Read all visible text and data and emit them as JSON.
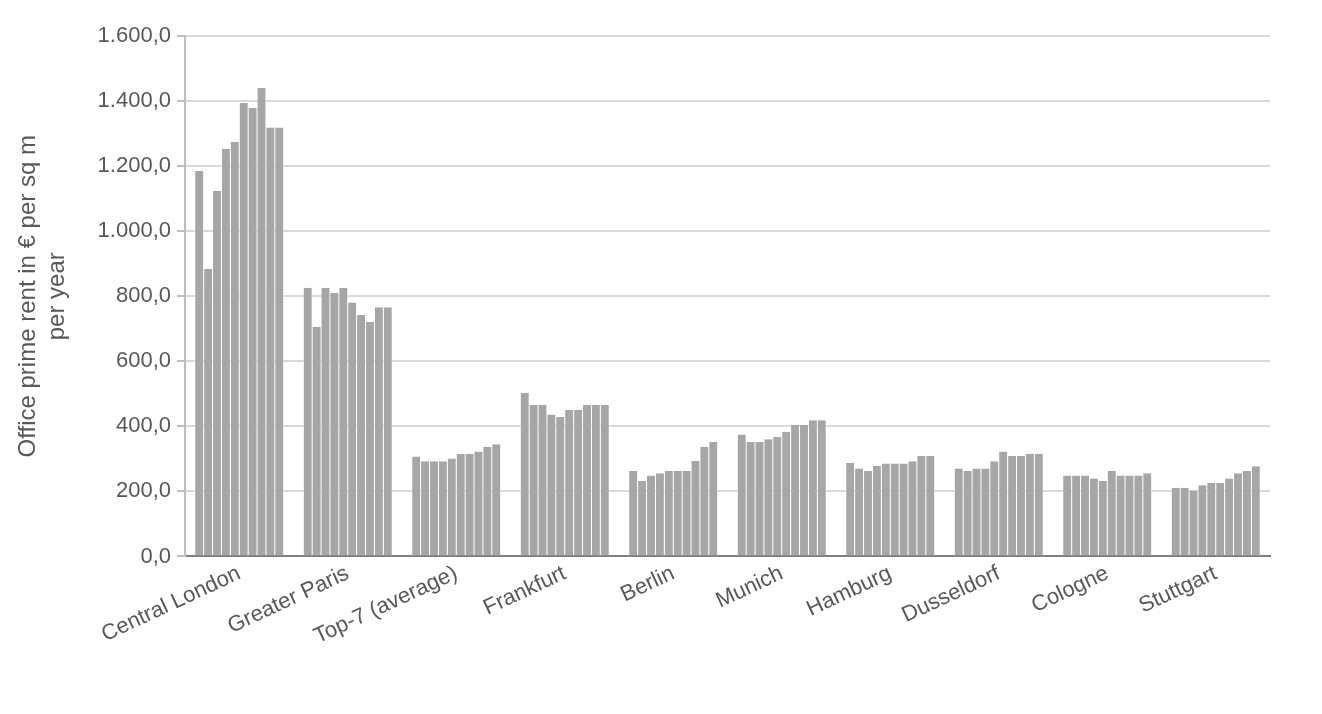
{
  "chart_data": {
    "type": "bar",
    "ylabel": "Office prime rent in € per sq m per year",
    "categories": [
      "Central London",
      "Greater Paris",
      "Top-7 (average)",
      "Frankfurt",
      "Berlin",
      "Munich",
      "Hamburg",
      "Dusseldorf",
      "Cologne",
      "Stuttgart"
    ],
    "series": [
      {
        "color": "#a6a6a6",
        "values": [
          1185,
          826,
          307,
          503,
          263,
          375,
          287,
          270,
          249,
          211
        ]
      },
      {
        "color": "#a6a6a6",
        "values": [
          884,
          706,
          293,
          466,
          233,
          352,
          270,
          263,
          249,
          211
        ]
      },
      {
        "color": "#a6a6a6",
        "values": [
          1124,
          826,
          293,
          466,
          249,
          352,
          263,
          270,
          249,
          203
        ]
      },
      {
        "color": "#a6a6a6",
        "values": [
          1253,
          811,
          293,
          436,
          256,
          360,
          279,
          270,
          240,
          219
        ]
      },
      {
        "color": "#a6a6a6",
        "values": [
          1275,
          826,
          301,
          429,
          263,
          368,
          286,
          293,
          233,
          226
        ]
      },
      {
        "color": "#a6a6a6",
        "values": [
          1394,
          781,
          316,
          450,
          263,
          383,
          286,
          323,
          263,
          226
        ]
      },
      {
        "color": "#a6a6a6",
        "values": [
          1379,
          742,
          316,
          450,
          263,
          405,
          286,
          309,
          249,
          240
        ]
      },
      {
        "color": "#a6a6a6",
        "values": [
          1440,
          721,
          323,
          466,
          294,
          405,
          293,
          309,
          249,
          256
        ]
      },
      {
        "color": "#a6a6a6",
        "values": [
          1319,
          766,
          337,
          466,
          337,
          419,
          309,
          316,
          249,
          263
        ]
      },
      {
        "color": "#a6a6a6",
        "values": [
          1319,
          766,
          345,
          466,
          352,
          419,
          309,
          316,
          256,
          277
        ]
      }
    ],
    "ylim": [
      0,
      1600
    ],
    "yticks": [
      {
        "value": 0,
        "label": "0,0"
      },
      {
        "value": 200,
        "label": "200,0"
      },
      {
        "value": 400,
        "label": "400,0"
      },
      {
        "value": 600,
        "label": "600,0"
      },
      {
        "value": 800,
        "label": "800,0"
      },
      {
        "value": 1000,
        "label": "1.000,0"
      },
      {
        "value": 1200,
        "label": "1.200,0"
      },
      {
        "value": 1400,
        "label": "1.400,0"
      },
      {
        "value": 1600,
        "label": "1.600,0"
      }
    ],
    "grid": "y",
    "legend": false
  }
}
